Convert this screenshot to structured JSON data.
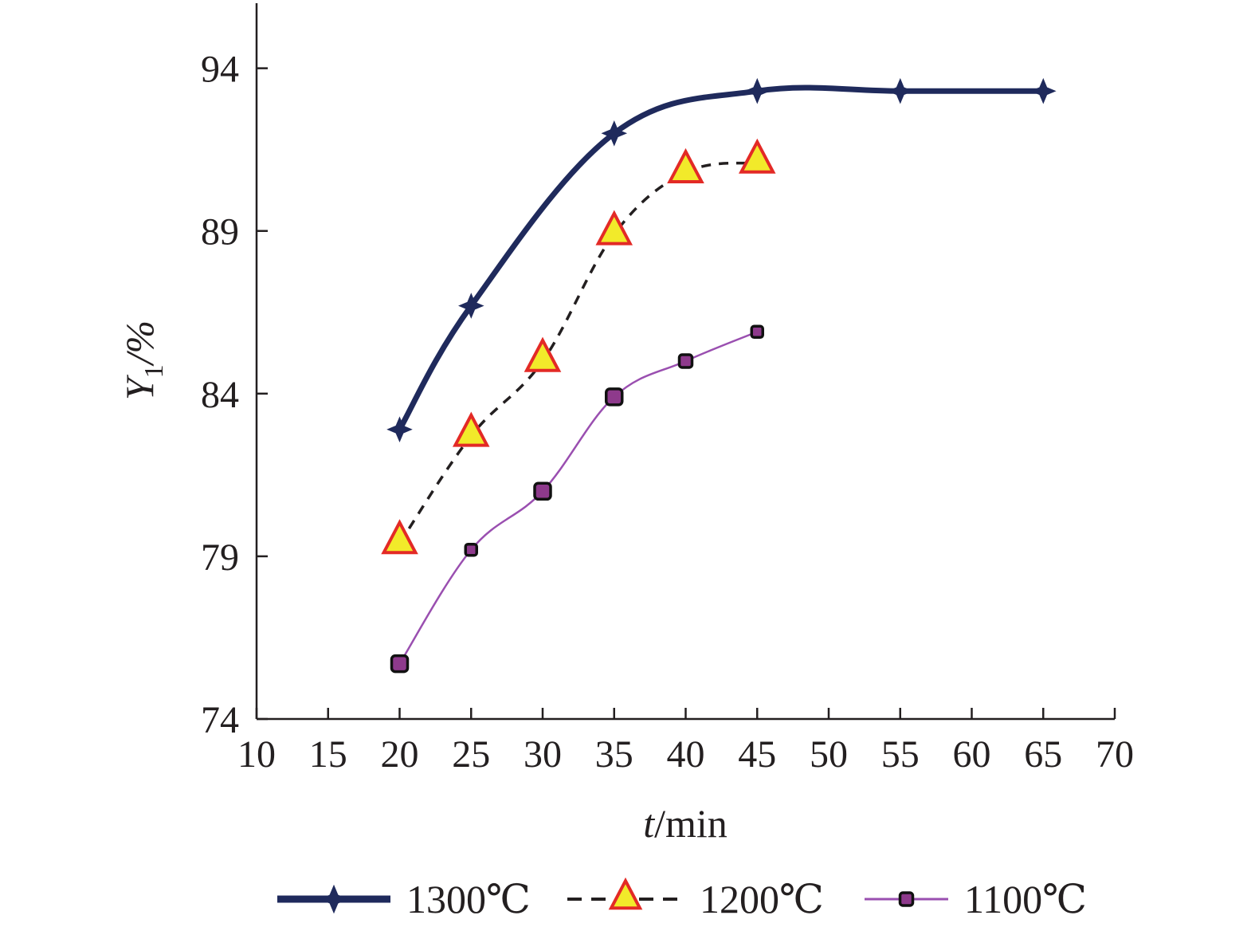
{
  "chart_data": {
    "type": "line",
    "title": "",
    "xlabel": {
      "italic": "t",
      "rest": "/min"
    },
    "ylabel": {
      "italic": "Y",
      "sub": "1",
      "rest": "/%"
    },
    "xlim": [
      10,
      70
    ],
    "ylim": [
      74,
      96
    ],
    "xticks": [
      10,
      15,
      20,
      25,
      30,
      35,
      40,
      45,
      50,
      55,
      60,
      65,
      70
    ],
    "yticks": [
      74,
      79,
      84,
      89,
      94
    ],
    "grid": false,
    "legend_position": "bottom",
    "series": [
      {
        "name": "1300℃",
        "color": "#1f2a5c",
        "line_style": "solid",
        "marker": "star-icon",
        "x": [
          20,
          25,
          35,
          45,
          55,
          65
        ],
        "y": [
          82.9,
          86.7,
          92.0,
          93.3,
          93.3,
          93.3
        ]
      },
      {
        "name": "1200℃",
        "color": "#231f20",
        "line_style": "dashed",
        "marker": "triangle-icon",
        "marker_fill": "#f2ea2a",
        "marker_edge": "#e32a26",
        "x": [
          20,
          25,
          30,
          35,
          40,
          45
        ],
        "y": [
          79.4,
          82.7,
          85.0,
          88.9,
          90.8,
          91.1
        ]
      },
      {
        "name": "1100℃",
        "color": "#9a4fb0",
        "line_style": "solid",
        "marker": "square-icon",
        "marker_fill": "#8e3a8c",
        "x": [
          20,
          25,
          30,
          35,
          40,
          45
        ],
        "y": [
          75.7,
          79.2,
          81.0,
          83.9,
          85.0,
          85.9
        ]
      }
    ]
  }
}
